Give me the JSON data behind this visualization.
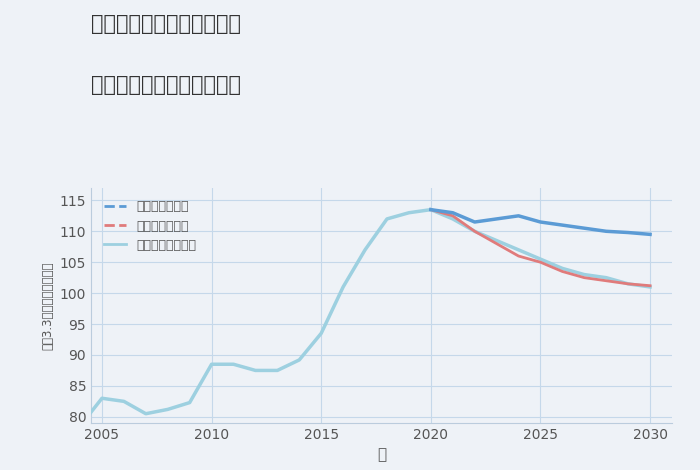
{
  "title_line1": "兵庫県姫路市飾磨区中島の",
  "title_line2": "中古マンションの価格推移",
  "xlabel": "年",
  "ylabel": "平（3.3㎡）単価（万円）",
  "background_color": "#eef2f7",
  "plot_background": "#eef2f7",
  "ylim": [
    79,
    117
  ],
  "xlim": [
    2004.5,
    2031
  ],
  "yticks": [
    80,
    85,
    90,
    95,
    100,
    105,
    110,
    115
  ],
  "xticks": [
    2005,
    2010,
    2015,
    2020,
    2025,
    2030
  ],
  "good_color": "#5b9bd5",
  "bad_color": "#e07b7b",
  "normal_color": "#9dd0e0",
  "grid_color": "#c5d8ea",
  "legend_labels": [
    "グッドシナリオ",
    "バッドシナリオ",
    "ノーマルシナリオ"
  ],
  "historical_years": [
    2004,
    2005,
    2006,
    2007,
    2008,
    2009,
    2010,
    2011,
    2012,
    2013,
    2014,
    2015,
    2016,
    2017,
    2018,
    2019,
    2020
  ],
  "historical_values": [
    78.5,
    83,
    82.5,
    80.5,
    81.2,
    82.3,
    88.5,
    88.5,
    87.5,
    87.5,
    89.2,
    93.5,
    101,
    107,
    112,
    113,
    113.5
  ],
  "good_years": [
    2020,
    2021,
    2022,
    2023,
    2024,
    2025,
    2026,
    2027,
    2028,
    2029,
    2030
  ],
  "good_values": [
    113.5,
    113.0,
    111.5,
    112.0,
    112.5,
    111.5,
    111.0,
    110.5,
    110.0,
    109.8,
    109.5
  ],
  "bad_years": [
    2020,
    2021,
    2022,
    2023,
    2024,
    2025,
    2026,
    2027,
    2028,
    2029,
    2030
  ],
  "bad_values": [
    113.5,
    112.5,
    110.0,
    108.0,
    106.0,
    105.0,
    103.5,
    102.5,
    102.0,
    101.5,
    101.2
  ],
  "normal_years": [
    2020,
    2021,
    2022,
    2023,
    2024,
    2025,
    2026,
    2027,
    2028,
    2029,
    2030
  ],
  "normal_values": [
    113.5,
    112.0,
    110.0,
    108.5,
    107.0,
    105.5,
    104.0,
    103.0,
    102.5,
    101.5,
    101.0
  ]
}
